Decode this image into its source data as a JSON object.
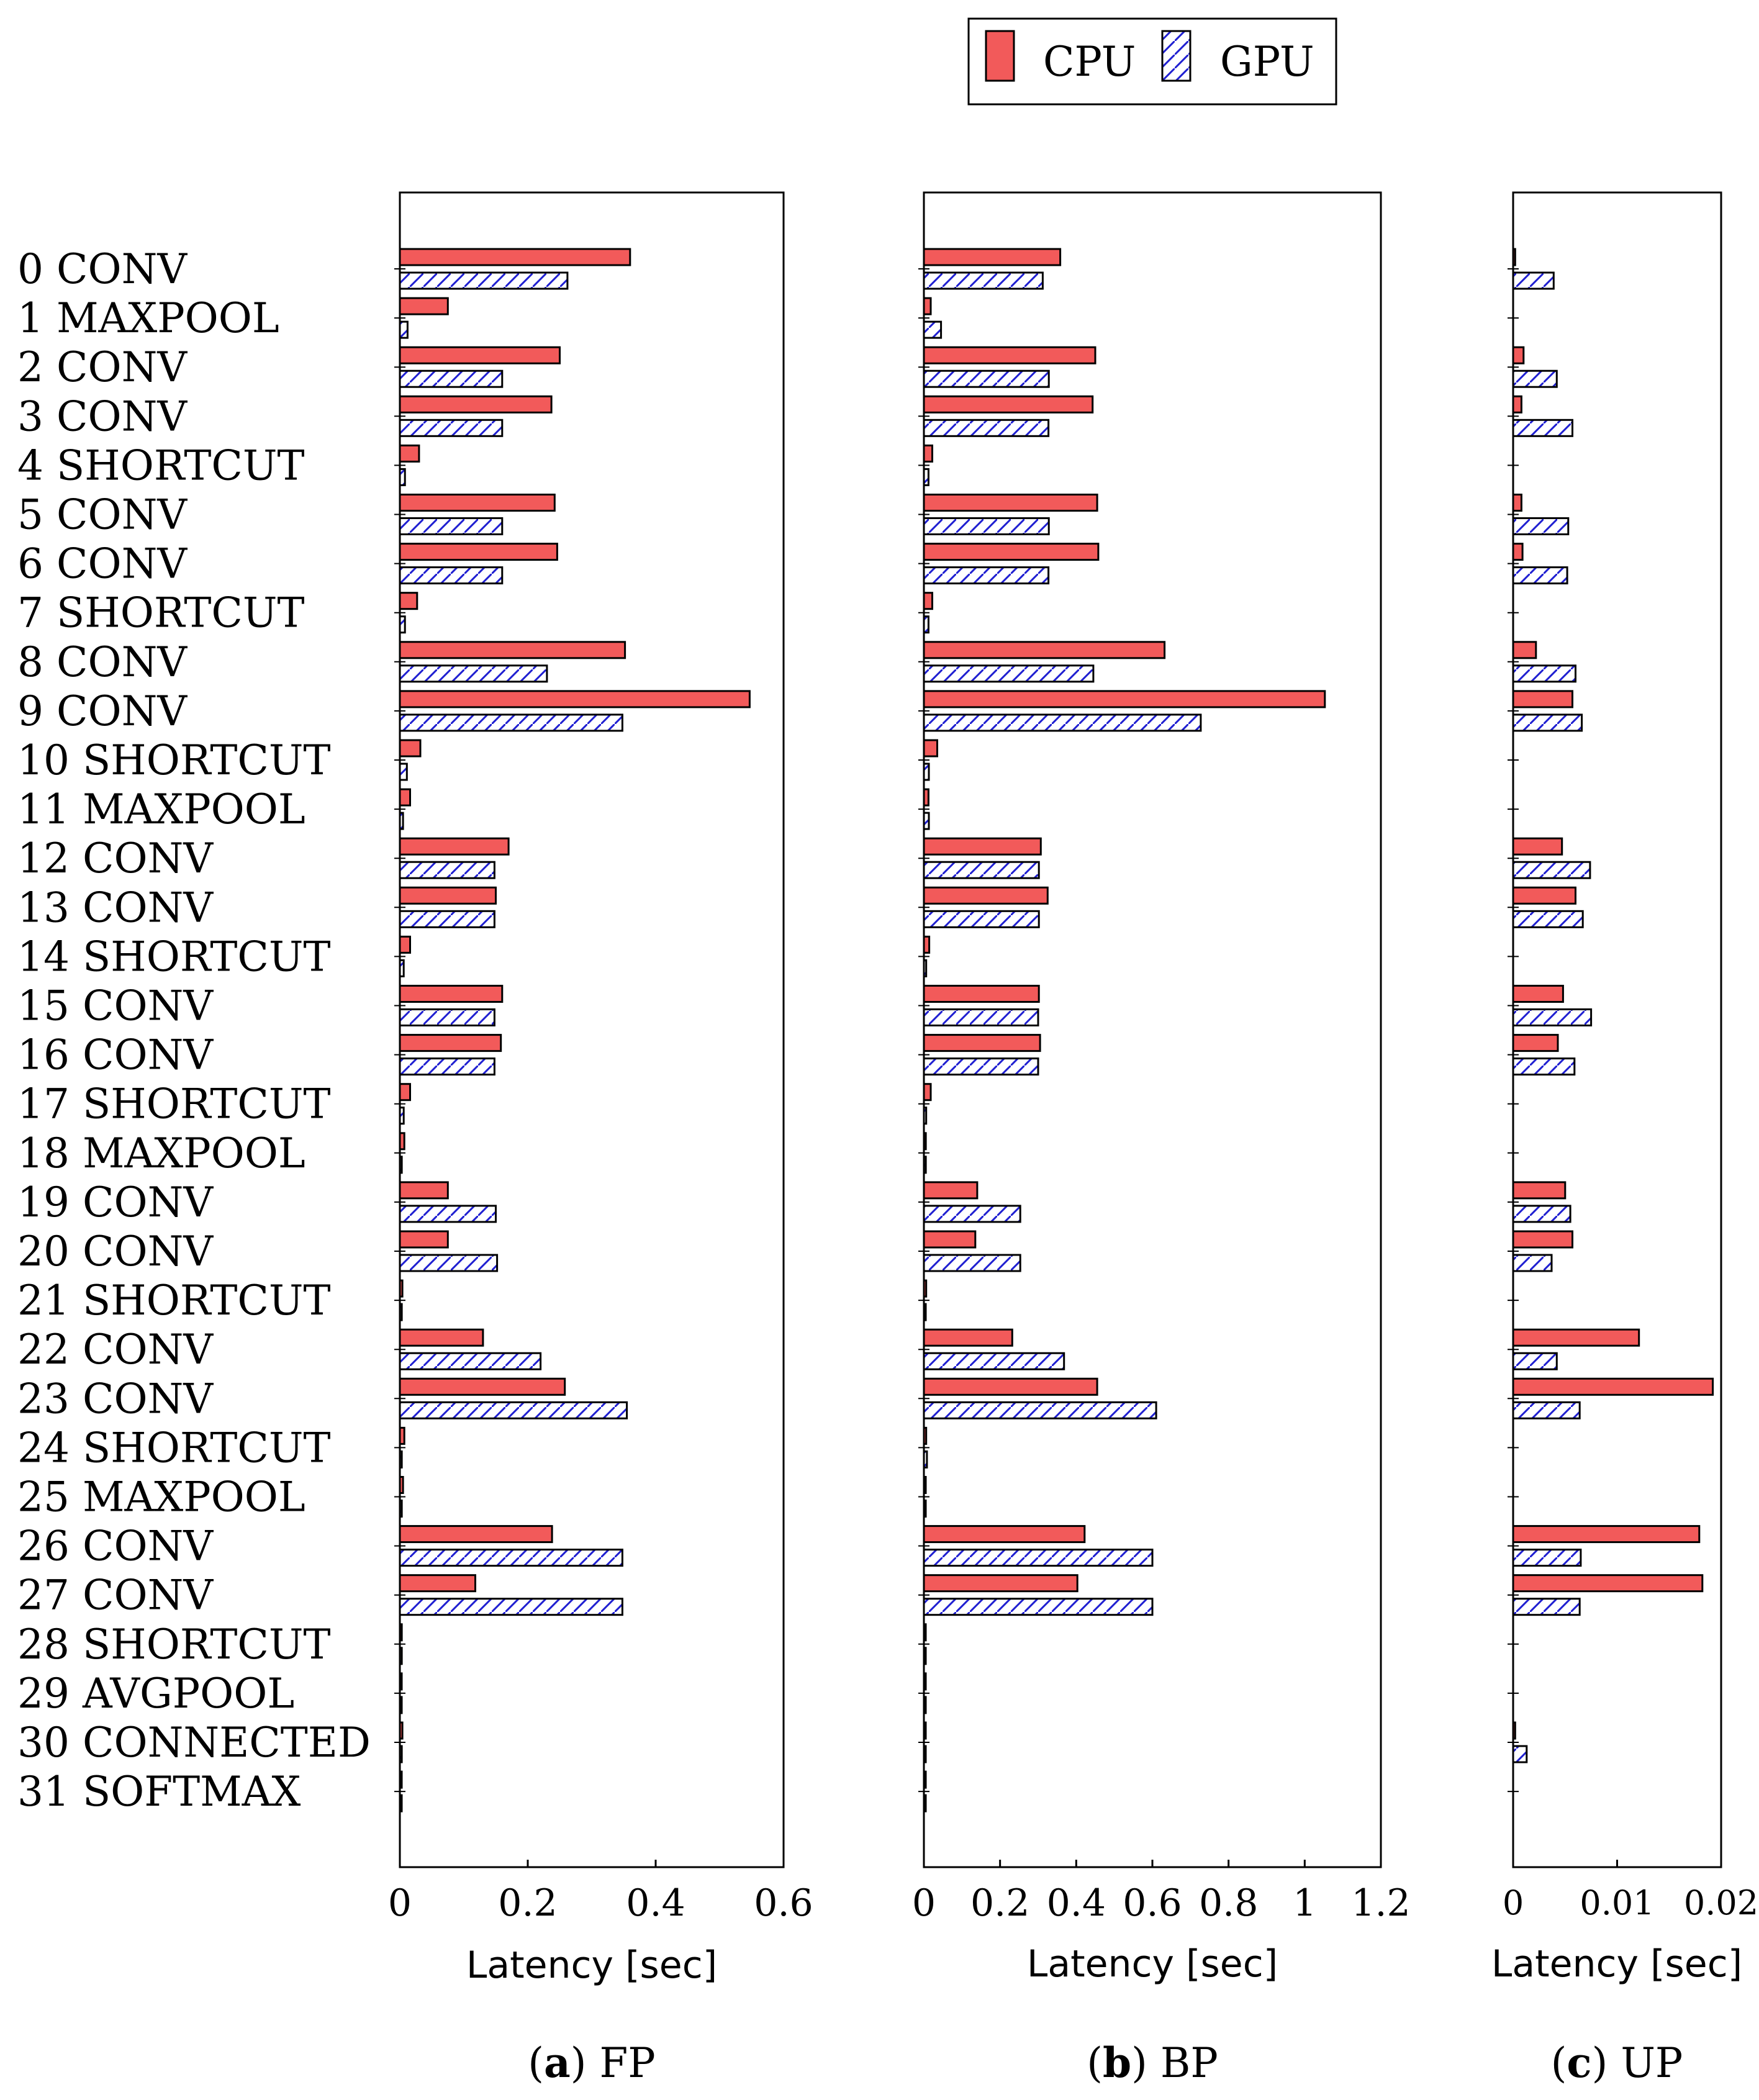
{
  "legend": {
    "entries": [
      {
        "name": "CPU",
        "fill": "#f25a5a",
        "pattern": "solid"
      },
      {
        "name": "GPU",
        "fill": "#ffffff",
        "pattern": "diagonal-hatch",
        "hatch_color": "#1f1fd1"
      }
    ]
  },
  "chart_data": [
    {
      "type": "bar",
      "orientation": "horizontal",
      "caption_letter": "a",
      "caption_text": "FP",
      "xlabel": "Latency [sec]",
      "xlim": [
        0,
        0.6
      ],
      "xticks": [
        0,
        0.2,
        0.4,
        0.6
      ],
      "xtick_labels": [
        "0",
        "0.2",
        "0.4",
        "0.6"
      ],
      "categories": [
        "0 CONV",
        "1 MAXPOOL",
        "2 CONV",
        "3 CONV",
        "4 SHORTCUT",
        "5 CONV",
        "6 CONV",
        "7 SHORTCUT",
        "8 CONV",
        "9 CONV",
        "10 SHORTCUT",
        "11 MAXPOOL",
        "12 CONV",
        "13 CONV",
        "14 SHORTCUT",
        "15 CONV",
        "16 CONV",
        "17 SHORTCUT",
        "18 MAXPOOL",
        "19 CONV",
        "20 CONV",
        "21 SHORTCUT",
        "22 CONV",
        "23 CONV",
        "24 SHORTCUT",
        "25 MAXPOOL",
        "26 CONV",
        "27 CONV",
        "28 SHORTCUT",
        "29 AVGPOOL",
        "30 CONNECTED",
        "31 SOFTMAX"
      ],
      "series": [
        {
          "name": "CPU",
          "values": [
            0.36,
            0.075,
            0.25,
            0.237,
            0.03,
            0.242,
            0.246,
            0.027,
            0.352,
            0.547,
            0.032,
            0.016,
            0.17,
            0.15,
            0.016,
            0.16,
            0.158,
            0.016,
            0.007,
            0.075,
            0.075,
            0.004,
            0.13,
            0.258,
            0.007,
            0.005,
            0.238,
            0.118,
            0.003,
            0.002,
            0.004,
            0.002
          ]
        },
        {
          "name": "GPU",
          "values": [
            0.262,
            0.012,
            0.16,
            0.16,
            0.008,
            0.16,
            0.16,
            0.008,
            0.23,
            0.348,
            0.011,
            0.005,
            0.148,
            0.148,
            0.006,
            0.148,
            0.148,
            0.006,
            0.003,
            0.15,
            0.152,
            0.003,
            0.22,
            0.355,
            0.003,
            0.003,
            0.348,
            0.348,
            0.003,
            0.002,
            0.003,
            0.002
          ]
        }
      ]
    },
    {
      "type": "bar",
      "orientation": "horizontal",
      "caption_letter": "b",
      "caption_text": "BP",
      "xlabel": "Latency [sec]",
      "xlim": [
        0,
        1.2
      ],
      "xticks": [
        0,
        0.2,
        0.4,
        0.6,
        0.8,
        1,
        1.2
      ],
      "xtick_labels": [
        "0",
        "0.2",
        "0.4",
        "0.6",
        "0.8",
        "1",
        "1.2"
      ],
      "categories": [
        "0 CONV",
        "1 MAXPOOL",
        "2 CONV",
        "3 CONV",
        "4 SHORTCUT",
        "5 CONV",
        "6 CONV",
        "7 SHORTCUT",
        "8 CONV",
        "9 CONV",
        "10 SHORTCUT",
        "11 MAXPOOL",
        "12 CONV",
        "13 CONV",
        "14 SHORTCUT",
        "15 CONV",
        "16 CONV",
        "17 SHORTCUT",
        "18 MAXPOOL",
        "19 CONV",
        "20 CONV",
        "21 SHORTCUT",
        "22 CONV",
        "23 CONV",
        "24 SHORTCUT",
        "25 MAXPOOL",
        "26 CONV",
        "27 CONV",
        "28 SHORTCUT",
        "29 AVGPOOL",
        "30 CONNECTED",
        "31 SOFTMAX"
      ],
      "series": [
        {
          "name": "CPU",
          "values": [
            0.358,
            0.018,
            0.45,
            0.443,
            0.022,
            0.455,
            0.458,
            0.022,
            0.632,
            1.053,
            0.035,
            0.012,
            0.307,
            0.325,
            0.014,
            0.302,
            0.305,
            0.018,
            0.005,
            0.14,
            0.135,
            0.006,
            0.232,
            0.455,
            0.006,
            0.004,
            0.422,
            0.403,
            0.003,
            0.002,
            0.004,
            0.002
          ]
        },
        {
          "name": "GPU",
          "values": [
            0.312,
            0.045,
            0.328,
            0.327,
            0.012,
            0.328,
            0.327,
            0.012,
            0.445,
            0.727,
            0.013,
            0.013,
            0.302,
            0.302,
            0.006,
            0.3,
            0.3,
            0.006,
            0.005,
            0.253,
            0.253,
            0.004,
            0.368,
            0.61,
            0.008,
            0.004,
            0.6,
            0.6,
            0.003,
            0.002,
            0.004,
            0.002
          ]
        }
      ]
    },
    {
      "type": "bar",
      "orientation": "horizontal",
      "caption_letter": "c",
      "caption_text": "UP",
      "xlabel": "Latency [sec]",
      "xlim": [
        0,
        0.02
      ],
      "xticks": [
        0,
        0.01,
        0.02
      ],
      "xtick_labels": [
        "0",
        "0.01",
        "0.02"
      ],
      "categories": [
        "0 CONV",
        "1 MAXPOOL",
        "2 CONV",
        "3 CONV",
        "4 SHORTCUT",
        "5 CONV",
        "6 CONV",
        "7 SHORTCUT",
        "8 CONV",
        "9 CONV",
        "10 SHORTCUT",
        "11 MAXPOOL",
        "12 CONV",
        "13 CONV",
        "14 SHORTCUT",
        "15 CONV",
        "16 CONV",
        "17 SHORTCUT",
        "18 MAXPOOL",
        "19 CONV",
        "20 CONV",
        "21 SHORTCUT",
        "22 CONV",
        "23 CONV",
        "24 SHORTCUT",
        "25 MAXPOOL",
        "26 CONV",
        "27 CONV",
        "28 SHORTCUT",
        "29 AVGPOOL",
        "30 CONNECTED",
        "31 SOFTMAX"
      ],
      "series": [
        {
          "name": "CPU",
          "values": [
            0.0002,
            0,
            0.001,
            0.0008,
            0,
            0.0008,
            0.0009,
            0,
            0.0022,
            0.0057,
            0,
            0,
            0.0047,
            0.006,
            0,
            0.0048,
            0.0043,
            0,
            0,
            0.005,
            0.0057,
            0,
            0.0121,
            0.0192,
            0,
            0,
            0.0179,
            0.0182,
            0,
            0,
            0.0002,
            0
          ]
        },
        {
          "name": "GPU",
          "values": [
            0.0039,
            0,
            0.0042,
            0.0057,
            0,
            0.0053,
            0.0052,
            0,
            0.006,
            0.0066,
            0,
            0,
            0.0074,
            0.0067,
            0,
            0.0075,
            0.0059,
            0,
            0,
            0.0055,
            0.0037,
            0,
            0.0042,
            0.0064,
            0,
            0,
            0.0065,
            0.0064,
            0,
            0,
            0.0013,
            0
          ]
        }
      ]
    }
  ]
}
